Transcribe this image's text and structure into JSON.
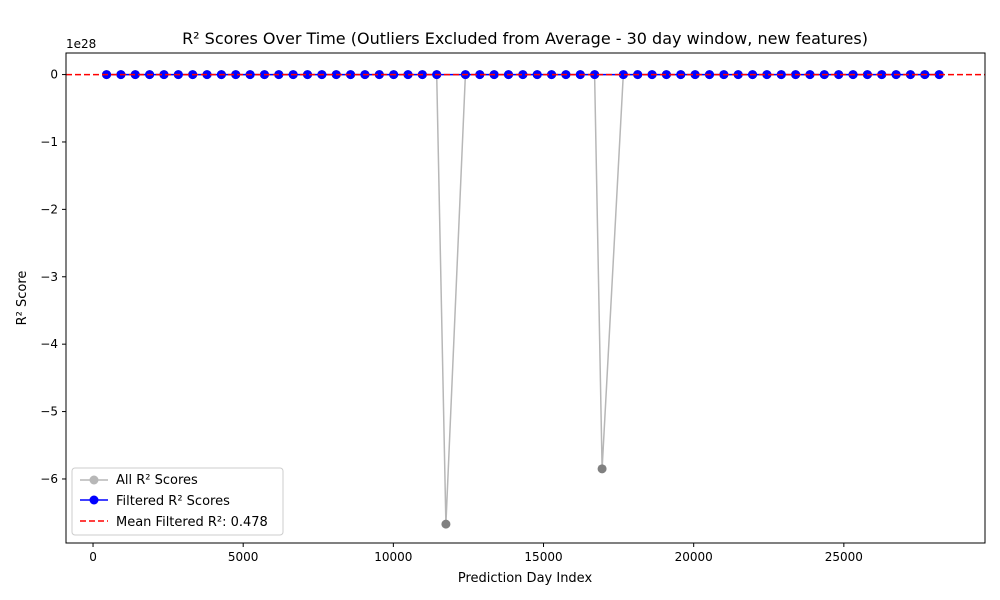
{
  "chart_data": {
    "type": "line",
    "title": "R² Scores Over Time (Outliers Excluded from Average - 30 day window, new features)",
    "xlabel": "Prediction Day Index",
    "ylabel": "R² Score",
    "offset_text": "1e28",
    "xlim": [
      -900,
      29700
    ],
    "ylim": [
      -6.95,
      0.32
    ],
    "x_ticks": [
      0,
      5000,
      10000,
      15000,
      20000,
      25000
    ],
    "x_tick_labels": [
      "0",
      "5000",
      "10000",
      "15000",
      "20000",
      "25000"
    ],
    "y_ticks": [
      0,
      -1,
      -2,
      -3,
      -4,
      -5,
      -6
    ],
    "y_tick_labels": [
      "0",
      "−1",
      "−2",
      "−3",
      "−4",
      "−5",
      "−6"
    ],
    "grid": false,
    "legend_position": "lower-left",
    "series": [
      {
        "name": "All R² Scores",
        "color": "#808080",
        "line_color": "#b7b7b7",
        "marker": "circle",
        "outliers": [
          {
            "x": 11750,
            "y": -6.67
          },
          {
            "x": 16950,
            "y": -5.85
          }
        ]
      },
      {
        "name": "Filtered R² Scores",
        "color": "#0000ff",
        "line_color": "#0000ff",
        "marker": "circle",
        "x_start": 450,
        "x_end": 28350,
        "x_step": 478,
        "y_value": 0,
        "excluded_x": [
          11750,
          16950
        ]
      }
    ],
    "reference_lines": [
      {
        "name": "Mean Filtered R²: 0.478",
        "y": 0.478,
        "color": "#ff0000",
        "style": "dashed"
      }
    ]
  }
}
